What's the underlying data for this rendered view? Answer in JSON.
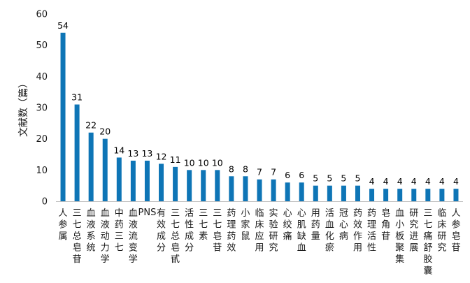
{
  "chart_data": {
    "type": "bar",
    "title": "",
    "xlabel": "",
    "ylabel": "文献数（篇）",
    "ylim": [
      0,
      60
    ],
    "yticks": [
      0,
      10,
      20,
      30,
      40,
      50,
      60
    ],
    "grid": false,
    "legend": "none",
    "bar_color": "#0e75b6",
    "categories": [
      "人参属",
      "三七总皂苷",
      "血液系统",
      "血液动力学",
      "中药三七",
      "血液流变学",
      "PNS",
      "有效成分",
      "三七总皂甙",
      "活性成分",
      "三七素",
      "三七皂苷",
      "药理药效",
      "小家鼠",
      "临床应用",
      "实验研究",
      "心绞痛",
      "心肌缺血",
      "用药量",
      "活血化瘀",
      "冠心病",
      "药效作用",
      "药理活性",
      "皂角苷",
      "血小板聚集",
      "研究进展",
      "三七痛舒胶囊",
      "临床研究",
      "人参皂苷"
    ],
    "values": [
      54,
      31,
      22,
      20,
      14,
      13,
      13,
      12,
      11,
      10,
      10,
      10,
      8,
      8,
      7,
      7,
      6,
      6,
      5,
      5,
      5,
      5,
      4,
      4,
      4,
      4,
      4,
      4,
      4
    ]
  }
}
